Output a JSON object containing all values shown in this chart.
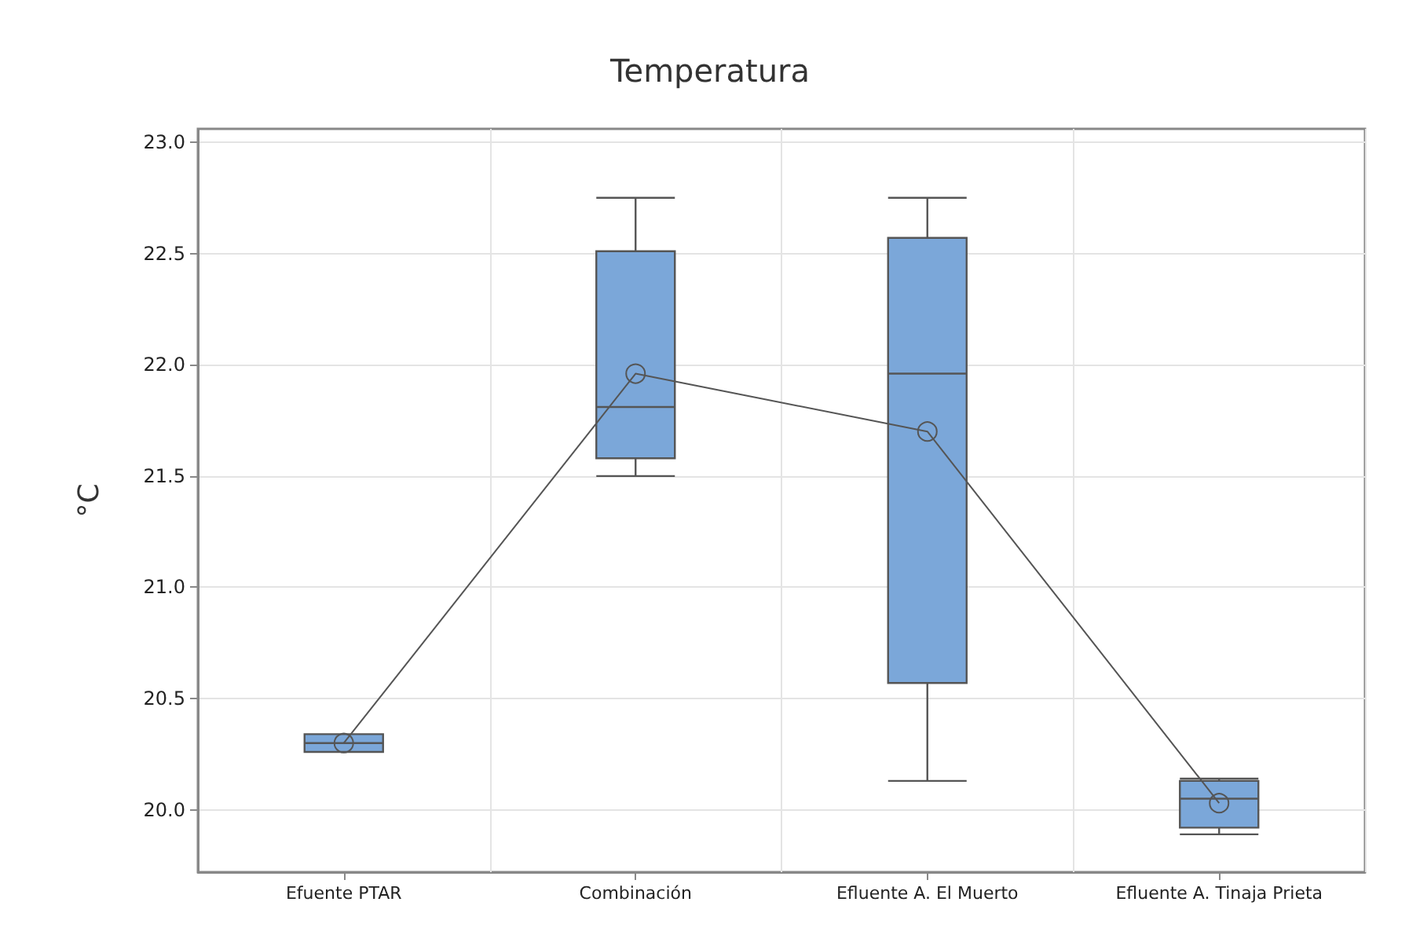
{
  "chart_data": {
    "type": "box",
    "title": "Temperatura",
    "ylabel": "°C",
    "categories": [
      "Efuente PTAR",
      "Combinación",
      "Efluente A. El Muerto",
      "Efluente A. Tinaja Prieta"
    ],
    "color": "#7ba7d9",
    "boxes": [
      {
        "low": 20.26,
        "q1": 20.26,
        "median": 20.3,
        "q3": 20.34,
        "high": 20.34
      },
      {
        "low": 21.5,
        "q1": 21.58,
        "median": 21.81,
        "q3": 22.51,
        "high": 22.75
      },
      {
        "low": 20.13,
        "q1": 20.57,
        "median": 21.96,
        "q3": 22.57,
        "high": 22.75
      },
      {
        "low": 19.89,
        "q1": 19.92,
        "median": 20.05,
        "q3": 20.13,
        "high": 20.14
      }
    ],
    "series": [
      {
        "type": "line",
        "color": "#555555",
        "values": [
          20.3,
          21.96,
          21.7,
          20.03
        ]
      }
    ],
    "ylim": [
      19.72,
      23.06
    ],
    "yticks": [
      {
        "value": 20,
        "label": "20.0"
      },
      20.5,
      {
        "value": 21,
        "label": "21.0"
      },
      21.5,
      {
        "value": 22,
        "label": "22.0"
      },
      22.5,
      {
        "value": 23,
        "label": "23.0"
      }
    ],
    "grid": true,
    "marker": "circle"
  }
}
